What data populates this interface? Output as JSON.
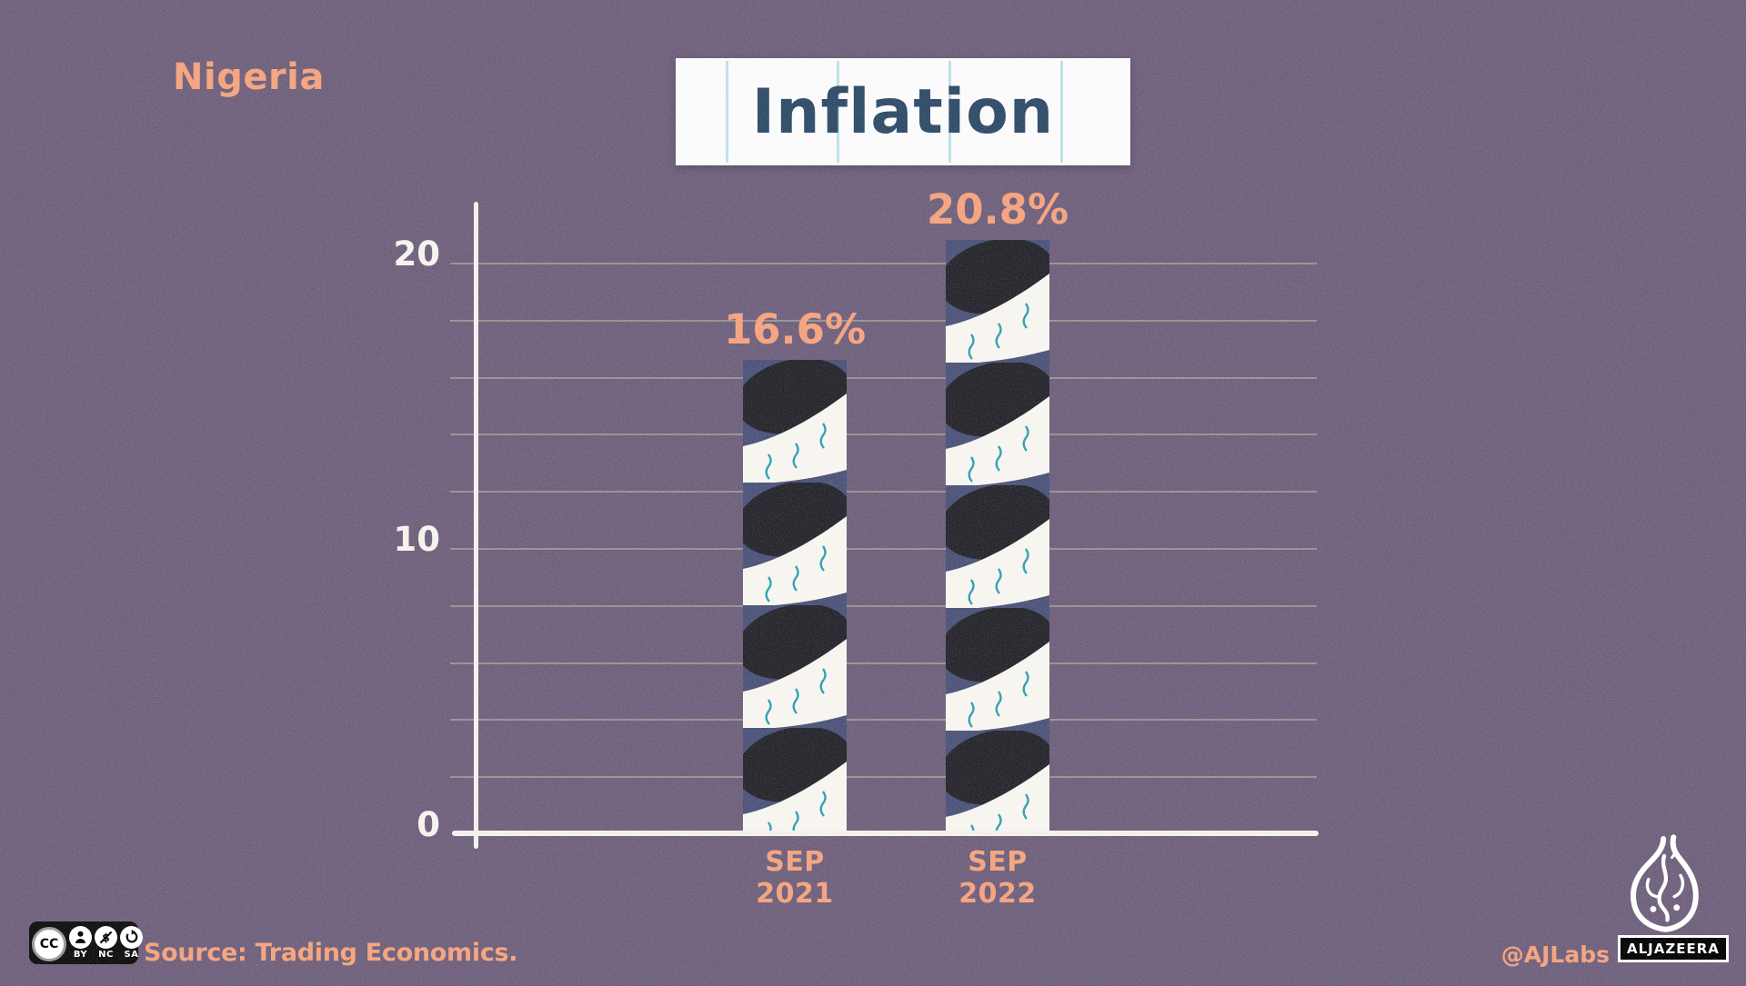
{
  "header": {
    "region": "Nigeria",
    "title": "Inflation"
  },
  "chart_data": {
    "type": "bar",
    "title": "Inflation",
    "categories": [
      "SEP 2021",
      "SEP 2022"
    ],
    "values": [
      16.6,
      20.8
    ],
    "value_labels": [
      "16.6%",
      "20.8%"
    ],
    "unit": "%",
    "ylim": [
      0,
      22
    ],
    "yticks": [
      0,
      10,
      20
    ],
    "grid_step": 2,
    "grid_max": 20,
    "grid_on": true,
    "legend_position": "none",
    "bar_style": "twisted-rope-illustration"
  },
  "footer": {
    "source": "Source: Trading Economics.",
    "credit": "@AJLabs",
    "brand": "ALJAZEERA",
    "license": {
      "cc": "CC",
      "labels": [
        "BY",
        "NC",
        "SA"
      ]
    }
  },
  "colors": {
    "background": "#6d5f7b",
    "accent_salmon": "#f4a27d",
    "title_navy": "#2d4a66",
    "bar_navy": "#4a5278",
    "bar_black": "#24242b",
    "ribbon_white": "#f7f5f0",
    "squiggle_teal": "#2aa0b0",
    "axis_white": "#f3f1ec",
    "gridline_green": "#ced8b6"
  },
  "icons": {
    "license": [
      "cc-icon",
      "person-icon",
      "no-dollar-icon",
      "share-alike-arrow-icon"
    ],
    "brand_logo": "aljazeera-flame-logo"
  }
}
